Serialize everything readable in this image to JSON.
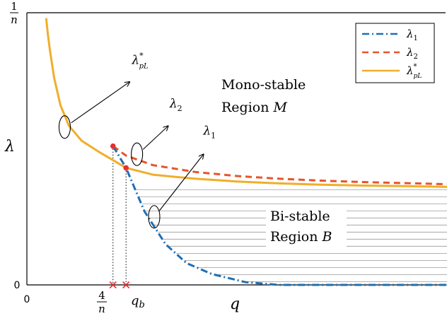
{
  "chart_data": {
    "type": "line",
    "title": "",
    "xlabel": "q",
    "ylabel": "λ",
    "grid": false,
    "legend_position": "top-right",
    "y_ticks": {
      "top_num": "1",
      "top_den": "n",
      "bottom": "0"
    },
    "x_ticks": {
      "origin": "0",
      "q4_num": "4",
      "q4_den": "n",
      "qb": "q",
      "qb_sub": "b"
    },
    "colors": {
      "lambda1": "#1f6fb4",
      "lambda2": "#e8542a",
      "lambda_pL": "#f0ae2a",
      "hatch": "#9a9a9a",
      "marker": "#e83030",
      "axis": "#000000"
    },
    "ylim": [
      0,
      1
    ],
    "xlim": [
      0,
      1
    ],
    "x_marks": {
      "q_4n": 0.205,
      "q_b": 0.236
    },
    "series": [
      {
        "name": "λ1",
        "label": "λ",
        "sub": "1",
        "style": "dash-dot",
        "points": [
          [
            0.205,
            0.51
          ],
          [
            0.236,
            0.43
          ],
          [
            0.28,
            0.27
          ],
          [
            0.33,
            0.15
          ],
          [
            0.38,
            0.08
          ],
          [
            0.44,
            0.04
          ],
          [
            0.52,
            0.01
          ],
          [
            0.6,
            0.0
          ],
          [
            0.8,
            0.0
          ],
          [
            1.0,
            0.0
          ]
        ]
      },
      {
        "name": "λ2",
        "label": "λ",
        "sub": "2",
        "style": "dashed",
        "points": [
          [
            0.205,
            0.51
          ],
          [
            0.236,
            0.475
          ],
          [
            0.3,
            0.44
          ],
          [
            0.4,
            0.415
          ],
          [
            0.5,
            0.4
          ],
          [
            0.6,
            0.39
          ],
          [
            0.7,
            0.383
          ],
          [
            0.8,
            0.378
          ],
          [
            0.9,
            0.374
          ],
          [
            1.0,
            0.37
          ]
        ]
      },
      {
        "name": "λ*pL",
        "label": "λ",
        "sup": "*",
        "sub": "pL",
        "style": "solid",
        "points": [
          [
            0.046,
            0.98
          ],
          [
            0.05,
            0.92
          ],
          [
            0.055,
            0.86
          ],
          [
            0.065,
            0.76
          ],
          [
            0.08,
            0.66
          ],
          [
            0.1,
            0.585
          ],
          [
            0.13,
            0.53
          ],
          [
            0.17,
            0.49
          ],
          [
            0.236,
            0.43
          ],
          [
            0.3,
            0.405
          ],
          [
            0.4,
            0.39
          ],
          [
            0.5,
            0.38
          ],
          [
            0.6,
            0.373
          ],
          [
            0.7,
            0.368
          ],
          [
            0.8,
            0.365
          ],
          [
            0.9,
            0.363
          ],
          [
            1.0,
            0.36
          ]
        ]
      }
    ],
    "annotations": [
      {
        "name": "annot-lambda-pL",
        "text": "λ",
        "sup": "*",
        "sub": "pL",
        "ellipse": [
          0.09,
          0.58
        ],
        "label_at": [
          0.27,
          0.76
        ]
      },
      {
        "name": "annot-lambda2",
        "text": "λ",
        "sub": "2",
        "ellipse": [
          0.262,
          0.48
        ],
        "label_at": [
          0.36,
          0.6
        ]
      },
      {
        "name": "annot-lambda1",
        "text": "λ",
        "sub": "1",
        "ellipse": [
          0.303,
          0.25
        ],
        "label_at": [
          0.44,
          0.5
        ]
      }
    ],
    "regions": {
      "mono": {
        "line1": "Mono-stable",
        "line2": "Region ",
        "symbol": "M"
      },
      "bi": {
        "line1": "Bi-stable",
        "line2": "Region ",
        "symbol": "B"
      }
    }
  }
}
